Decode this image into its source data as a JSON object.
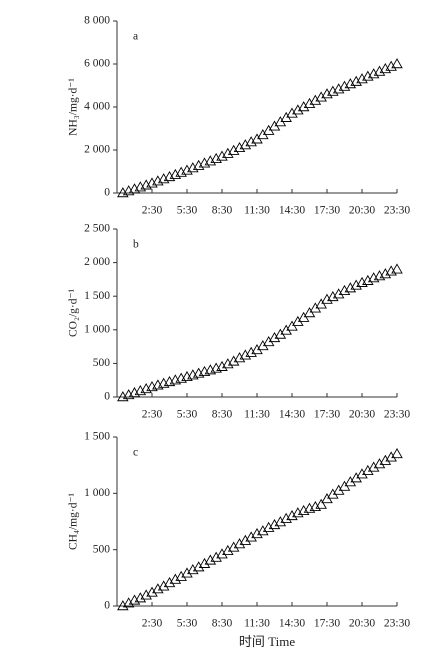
{
  "chart_data": [
    {
      "type": "scatter",
      "panel_label": "a",
      "ylabel": "NH₃/mg·d⁻¹",
      "marker": "triangle",
      "color": "#000000",
      "xlim": [
        -0.5,
        23.5
      ],
      "xticks": [
        {
          "value": 2.5,
          "label": "2:30"
        },
        {
          "value": 5.5,
          "label": "5:30"
        },
        {
          "value": 8.5,
          "label": "8:30"
        },
        {
          "value": 11.5,
          "label": "11:30"
        },
        {
          "value": 14.5,
          "label": "14:30"
        },
        {
          "value": 17.5,
          "label": "17:30"
        },
        {
          "value": 20.5,
          "label": "20:30"
        },
        {
          "value": 23.5,
          "label": "23:30"
        }
      ],
      "ylim": [
        0,
        8000
      ],
      "yticks": [
        0,
        {
          "value": 2000,
          "label": "2 000"
        },
        {
          "value": 4000,
          "label": "4 000"
        },
        {
          "value": 6000,
          "label": "6 000"
        },
        {
          "value": 8000,
          "label": "8 000"
        }
      ],
      "x": [
        0,
        0.5,
        1,
        1.5,
        2,
        2.5,
        3,
        3.5,
        4,
        4.5,
        5,
        5.5,
        6,
        6.5,
        7,
        7.5,
        8,
        8.5,
        9,
        9.5,
        10,
        10.5,
        11,
        11.5,
        12,
        12.5,
        13,
        13.5,
        14,
        14.5,
        15,
        15.5,
        16,
        16.5,
        17,
        17.5,
        18,
        18.5,
        19,
        19.5,
        20,
        20.5,
        21,
        21.5,
        22,
        22.5,
        23,
        23.5
      ],
      "values": [
        0,
        90,
        180,
        270,
        360,
        450,
        550,
        650,
        750,
        850,
        950,
        1050,
        1160,
        1270,
        1380,
        1480,
        1590,
        1700,
        1830,
        1970,
        2100,
        2230,
        2370,
        2500,
        2700,
        2900,
        3100,
        3300,
        3500,
        3700,
        3850,
        4000,
        4150,
        4300,
        4450,
        4600,
        4720,
        4830,
        4950,
        5070,
        5180,
        5300,
        5420,
        5530,
        5650,
        5770,
        5880,
        6000
      ]
    },
    {
      "type": "scatter",
      "panel_label": "b",
      "ylabel": "CO₂/g·d⁻¹",
      "marker": "triangle",
      "color": "#000000",
      "xlim": [
        -0.5,
        23.5
      ],
      "xticks": [
        {
          "value": 2.5,
          "label": "2:30"
        },
        {
          "value": 5.5,
          "label": "5:30"
        },
        {
          "value": 8.5,
          "label": "8:30"
        },
        {
          "value": 11.5,
          "label": "11:30"
        },
        {
          "value": 14.5,
          "label": "14:30"
        },
        {
          "value": 17.5,
          "label": "17:30"
        },
        {
          "value": 20.5,
          "label": "20:30"
        },
        {
          "value": 23.5,
          "label": "23:30"
        }
      ],
      "ylim": [
        0,
        2500
      ],
      "yticks": [
        0,
        500,
        {
          "value": 1000,
          "label": "1 000"
        },
        {
          "value": 1500,
          "label": "1 500"
        },
        {
          "value": 2000,
          "label": "2 000"
        },
        {
          "value": 2500,
          "label": "2 500"
        }
      ],
      "x": [
        0,
        0.5,
        1,
        1.5,
        2,
        2.5,
        3,
        3.5,
        4,
        4.5,
        5,
        5.5,
        6,
        6.5,
        7,
        7.5,
        8,
        8.5,
        9,
        9.5,
        10,
        10.5,
        11,
        11.5,
        12,
        12.5,
        13,
        13.5,
        14,
        14.5,
        15,
        15.5,
        16,
        16.5,
        17,
        17.5,
        18,
        18.5,
        19,
        19.5,
        20,
        20.5,
        21,
        21.5,
        22,
        22.5,
        23,
        23.5
      ],
      "values": [
        0,
        30,
        60,
        90,
        120,
        150,
        175,
        200,
        225,
        250,
        275,
        300,
        325,
        350,
        375,
        400,
        425,
        450,
        490,
        530,
        580,
        620,
        660,
        700,
        760,
        820,
        880,
        930,
        990,
        1050,
        1120,
        1180,
        1250,
        1320,
        1380,
        1450,
        1490,
        1530,
        1580,
        1620,
        1660,
        1700,
        1730,
        1770,
        1800,
        1830,
        1870,
        1900
      ]
    },
    {
      "type": "scatter",
      "panel_label": "c",
      "ylabel": "CH₄/mg·d⁻¹",
      "xlabel": "时间 Time",
      "marker": "triangle",
      "color": "#000000",
      "xlim": [
        -0.5,
        23.5
      ],
      "xticks": [
        {
          "value": 2.5,
          "label": "2:30"
        },
        {
          "value": 5.5,
          "label": "5:30"
        },
        {
          "value": 8.5,
          "label": "8:30"
        },
        {
          "value": 11.5,
          "label": "11:30"
        },
        {
          "value": 14.5,
          "label": "14:30"
        },
        {
          "value": 17.5,
          "label": "17:30"
        },
        {
          "value": 20.5,
          "label": "20:30"
        },
        {
          "value": 23.5,
          "label": "23:30"
        }
      ],
      "ylim": [
        0,
        1500
      ],
      "yticks": [
        0,
        500,
        {
          "value": 1000,
          "label": "1 000"
        },
        {
          "value": 1500,
          "label": "1 500"
        }
      ],
      "x": [
        0,
        0.5,
        1,
        1.5,
        2,
        2.5,
        3,
        3.5,
        4,
        4.5,
        5,
        5.5,
        6,
        6.5,
        7,
        7.5,
        8,
        8.5,
        9,
        9.5,
        10,
        10.5,
        11,
        11.5,
        12,
        12.5,
        13,
        13.5,
        14,
        14.5,
        15,
        15.5,
        16,
        16.5,
        17,
        17.5,
        18,
        18.5,
        19,
        19.5,
        20,
        20.5,
        21,
        21.5,
        22,
        22.5,
        23,
        23.5
      ],
      "values": [
        0,
        25,
        50,
        70,
        95,
        120,
        150,
        175,
        205,
        235,
        260,
        290,
        320,
        345,
        375,
        405,
        430,
        460,
        490,
        520,
        550,
        580,
        610,
        640,
        665,
        695,
        720,
        745,
        775,
        800,
        825,
        845,
        865,
        880,
        900,
        950,
        990,
        1025,
        1060,
        1100,
        1135,
        1170,
        1200,
        1230,
        1260,
        1290,
        1320,
        1350
      ]
    }
  ]
}
